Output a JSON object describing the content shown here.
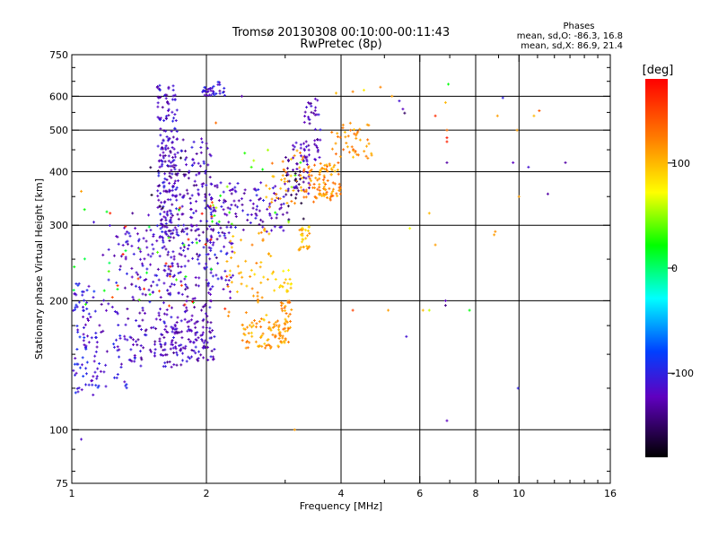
{
  "chart_data": {
    "type": "scatter",
    "title": "Tromsø 20130308 00:10:00-00:11:43",
    "subtitle": "RwPretec (8p)",
    "xlabel": "Frequency [MHz]",
    "ylabel": "Stationary phase Virtual Height [km]",
    "x_scale": "log",
    "y_scale": "log",
    "xlim": [
      1,
      16
    ],
    "ylim": [
      75,
      750
    ],
    "grid": true,
    "x_ticks": [
      1,
      2,
      4,
      6,
      8,
      10,
      16
    ],
    "y_ticks": [
      75,
      100,
      200,
      300,
      400,
      500,
      600,
      750
    ],
    "x_grid": [
      2,
      4,
      6,
      8,
      10
    ],
    "y_grid": [
      100,
      200,
      300,
      400,
      500,
      600
    ],
    "phase_stats": {
      "title": "Phases",
      "line_o": "mean, sd,O: -86.3, 16.8",
      "line_x": "mean, sd,X: 86.9, 21.4"
    },
    "colorbar": {
      "label": "[deg]",
      "range": [
        -180,
        180
      ],
      "ticks": [
        100,
        0,
        -100
      ]
    },
    "clusters": [
      {
        "x": [
          1.0,
          1.15
        ],
        "y": [
          120,
          220
        ],
        "phase": -105,
        "n": 70
      },
      {
        "x": [
          1.05,
          1.4
        ],
        "y": [
          125,
          190
        ],
        "phase": -110,
        "n": 55
      },
      {
        "x": [
          1.15,
          1.6
        ],
        "y": [
          150,
          300
        ],
        "phase": -115,
        "n": 80
      },
      {
        "x": [
          1.35,
          1.7
        ],
        "y": [
          200,
          320
        ],
        "phase": -120,
        "n": 60
      },
      {
        "x": [
          1.55,
          1.72
        ],
        "y": [
          280,
          640
        ],
        "phase": -115,
        "n": 150
      },
      {
        "x": [
          1.6,
          2.05
        ],
        "y": [
          150,
          480
        ],
        "phase": -118,
        "n": 320
      },
      {
        "x": [
          1.35,
          2.1
        ],
        "y": [
          140,
          175
        ],
        "phase": -120,
        "n": 110
      },
      {
        "x": [
          1.95,
          2.2
        ],
        "y": [
          600,
          650
        ],
        "phase": -110,
        "n": 35
      },
      {
        "x": [
          2.05,
          3.0
        ],
        "y": [
          290,
          380
        ],
        "phase": -118,
        "n": 110
      },
      {
        "x": [
          3.0,
          3.4
        ],
        "y": [
          350,
          470
        ],
        "phase": -125,
        "n": 45
      },
      {
        "x": [
          3.3,
          3.6
        ],
        "y": [
          420,
          600
        ],
        "phase": -120,
        "n": 45
      },
      {
        "x": [
          2.0,
          2.3
        ],
        "y": [
          200,
          300
        ],
        "phase": -110,
        "n": 50
      },
      {
        "x": [
          2.4,
          3.05
        ],
        "y": [
          155,
          180
        ],
        "phase": 110,
        "n": 75
      },
      {
        "x": [
          2.9,
          3.1
        ],
        "y": [
          160,
          200
        ],
        "phase": 115,
        "n": 35
      },
      {
        "x": [
          2.2,
          2.8
        ],
        "y": [
          180,
          300
        ],
        "phase": 105,
        "n": 55
      },
      {
        "x": [
          2.8,
          3.1
        ],
        "y": [
          210,
          240
        ],
        "phase": 90,
        "n": 20
      },
      {
        "x": [
          3.2,
          3.4
        ],
        "y": [
          260,
          300
        ],
        "phase": 100,
        "n": 30
      },
      {
        "x": [
          2.7,
          3.3
        ],
        "y": [
          330,
          460
        ],
        "phase": 110,
        "n": 40
      },
      {
        "x": [
          3.3,
          4.0
        ],
        "y": [
          340,
          420
        ],
        "phase": 118,
        "n": 100
      },
      {
        "x": [
          3.8,
          4.7
        ],
        "y": [
          430,
          520
        ],
        "phase": 115,
        "n": 45
      },
      {
        "x": [
          1.0,
          2.1
        ],
        "y": [
          180,
          350
        ],
        "phase": 20,
        "n": 25
      },
      {
        "x": [
          2.0,
          3.5
        ],
        "y": [
          300,
          450
        ],
        "phase": 40,
        "n": 20
      },
      {
        "x": [
          1.2,
          2.3
        ],
        "y": [
          190,
          360
        ],
        "phase": 160,
        "n": 25
      },
      {
        "x": [
          1.5,
          2.2
        ],
        "y": [
          250,
          450
        ],
        "phase": -155,
        "n": 20
      },
      {
        "x": [
          3.0,
          3.3
        ],
        "y": [
          300,
          420
        ],
        "phase": -150,
        "n": 20
      }
    ],
    "points": [
      {
        "x": 5.4,
        "y": 585,
        "phase": -110
      },
      {
        "x": 5.5,
        "y": 560,
        "phase": -120
      },
      {
        "x": 5.55,
        "y": 548,
        "phase": -150
      },
      {
        "x": 6.5,
        "y": 540,
        "phase": 160
      },
      {
        "x": 6.9,
        "y": 480,
        "phase": 170
      },
      {
        "x": 6.9,
        "y": 470,
        "phase": 165
      },
      {
        "x": 6.95,
        "y": 640,
        "phase": 20
      },
      {
        "x": 6.9,
        "y": 420,
        "phase": -130
      },
      {
        "x": 6.85,
        "y": 580,
        "phase": 100
      },
      {
        "x": 6.9,
        "y": 500,
        "phase": 130
      },
      {
        "x": 8.95,
        "y": 540,
        "phase": 110
      },
      {
        "x": 9.2,
        "y": 595,
        "phase": -100
      },
      {
        "x": 9.9,
        "y": 500,
        "phase": 110
      },
      {
        "x": 10.8,
        "y": 540,
        "phase": 100
      },
      {
        "x": 11.1,
        "y": 555,
        "phase": 140
      },
      {
        "x": 10.5,
        "y": 410,
        "phase": -110
      },
      {
        "x": 9.7,
        "y": 420,
        "phase": -120
      },
      {
        "x": 12.7,
        "y": 420,
        "phase": -130
      },
      {
        "x": 10.0,
        "y": 350,
        "phase": 110
      },
      {
        "x": 11.6,
        "y": 355,
        "phase": -130
      },
      {
        "x": 8.85,
        "y": 290,
        "phase": 115
      },
      {
        "x": 8.8,
        "y": 285,
        "phase": 110
      },
      {
        "x": 5.7,
        "y": 295,
        "phase": 70
      },
      {
        "x": 6.3,
        "y": 320,
        "phase": 100
      },
      {
        "x": 6.5,
        "y": 270,
        "phase": 110
      },
      {
        "x": 6.85,
        "y": 200,
        "phase": -120
      },
      {
        "x": 6.85,
        "y": 195,
        "phase": -140
      },
      {
        "x": 7.75,
        "y": 190,
        "phase": 20
      },
      {
        "x": 6.3,
        "y": 190,
        "phase": 60
      },
      {
        "x": 6.1,
        "y": 190,
        "phase": 100
      },
      {
        "x": 4.25,
        "y": 190,
        "phase": 150
      },
      {
        "x": 5.1,
        "y": 190,
        "phase": 110
      },
      {
        "x": 5.6,
        "y": 165,
        "phase": -110
      },
      {
        "x": 6.9,
        "y": 105,
        "phase": -120
      },
      {
        "x": 9.95,
        "y": 125,
        "phase": -100
      },
      {
        "x": 3.15,
        "y": 100,
        "phase": 110
      },
      {
        "x": 5.2,
        "y": 600,
        "phase": 110
      },
      {
        "x": 4.9,
        "y": 630,
        "phase": 120
      },
      {
        "x": 4.5,
        "y": 620,
        "phase": 80
      },
      {
        "x": 3.9,
        "y": 610,
        "phase": 100
      },
      {
        "x": 4.25,
        "y": 615,
        "phase": 120
      },
      {
        "x": 1.05,
        "y": 95,
        "phase": -115
      },
      {
        "x": 1.05,
        "y": 360,
        "phase": 110
      },
      {
        "x": 1.12,
        "y": 305,
        "phase": -110
      },
      {
        "x": 2.1,
        "y": 520,
        "phase": 130
      },
      {
        "x": 2.4,
        "y": 600,
        "phase": -130
      }
    ]
  }
}
